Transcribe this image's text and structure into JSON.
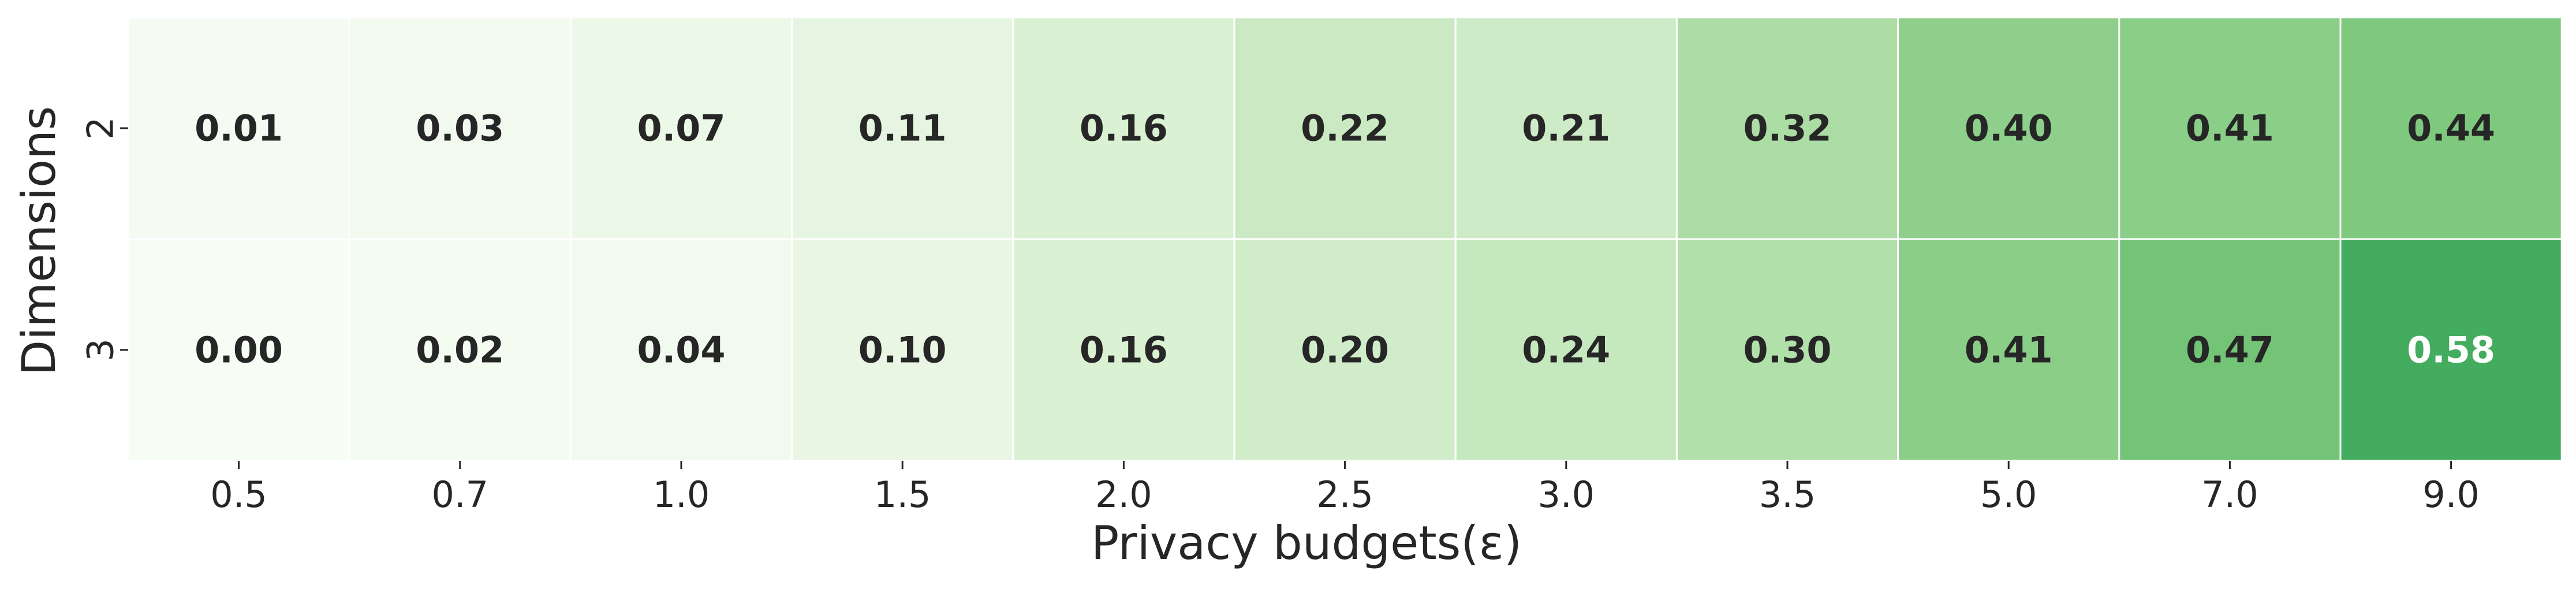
{
  "chart_data": {
    "type": "heatmap",
    "title": "",
    "xlabel": "Privacy budgets(ε)",
    "ylabel": "Dimensions",
    "x_categories": [
      "0.5",
      "0.7",
      "1.0",
      "1.5",
      "2.0",
      "2.5",
      "3.0",
      "3.5",
      "5.0",
      "7.0",
      "9.0"
    ],
    "y_categories": [
      "2",
      "3"
    ],
    "values": [
      [
        0.01,
        0.03,
        0.07,
        0.11,
        0.16,
        0.22,
        0.21,
        0.32,
        0.4,
        0.41,
        0.44
      ],
      [
        0.0,
        0.02,
        0.04,
        0.1,
        0.16,
        0.2,
        0.24,
        0.3,
        0.41,
        0.47,
        0.58
      ]
    ],
    "value_labels": [
      [
        "0.01",
        "0.03",
        "0.07",
        "0.11",
        "0.16",
        "0.22",
        "0.21",
        "0.32",
        "0.40",
        "0.41",
        "0.44"
      ],
      [
        "0.00",
        "0.02",
        "0.04",
        "0.10",
        "0.16",
        "0.20",
        "0.24",
        "0.30",
        "0.41",
        "0.47",
        "0.58"
      ]
    ],
    "colormap": "Greens",
    "color_range": [
      0,
      0.58
    ],
    "colors": {
      "low": "#f7fcf5",
      "high": "#56b567",
      "text_dark": "#262626",
      "text_light": "#ffffff",
      "grid": "#ffffff"
    },
    "legend": "none"
  }
}
